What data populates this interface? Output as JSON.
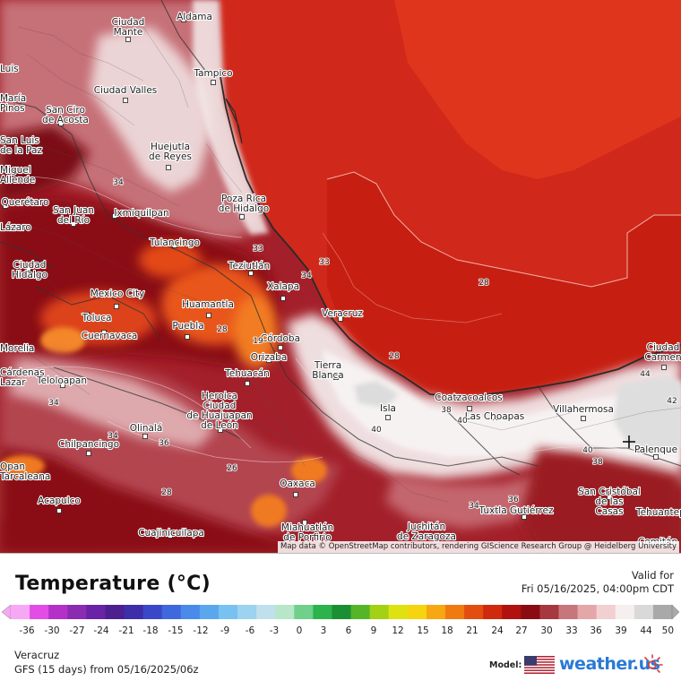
{
  "map": {
    "attribution": "Map data © OpenStreetMap contributors, rendering GIScience Research Group @ Heidelberg University",
    "cities": [
      {
        "name": "Ciudad",
        "name2": "Mante"
      },
      {
        "name": "Aldama"
      },
      {
        "name": "Tampico"
      },
      {
        "name": "Ciudad Valles"
      },
      {
        "name": "San Ciro",
        "name2": "de Acosta"
      },
      {
        "name": "Huejutla",
        "name2": "de Reyes"
      },
      {
        "name": "Poza Rica",
        "name2": "de Hidalgo"
      },
      {
        "name": "Querétaro"
      },
      {
        "name": "San Juan",
        "name2": "del Río"
      },
      {
        "name": "Ixmiquilpan"
      },
      {
        "name": "Tulancingo"
      },
      {
        "name": "Ciudad",
        "name2": "Hidalgo"
      },
      {
        "name": "Teziutlán"
      },
      {
        "name": "Mexico City"
      },
      {
        "name": "Xalapa"
      },
      {
        "name": "Huamantla"
      },
      {
        "name": "Toluca"
      },
      {
        "name": "Puebla"
      },
      {
        "name": "Veracruz"
      },
      {
        "name": "Cuernavaca"
      },
      {
        "name": "Córdoba"
      },
      {
        "name": "Orizaba"
      },
      {
        "name": "Tierra",
        "name2": "Blanca"
      },
      {
        "name": "Teloloapan"
      },
      {
        "name": "Tehuacán"
      },
      {
        "name": "Heroica",
        "name2": "Ciudad",
        "name3": "de Huajuapan",
        "name4": "de León"
      },
      {
        "name": "Coatzacoalcos"
      },
      {
        "name": "Ciudad",
        "name2": "Carmen"
      },
      {
        "name": "Villahermosa"
      },
      {
        "name": "Las Choapas"
      },
      {
        "name": "Isla"
      },
      {
        "name": "Olinalá"
      },
      {
        "name": "Chilpancingo"
      },
      {
        "name": "Palenque"
      },
      {
        "name": "Oaxaca"
      },
      {
        "name": "Acapulco"
      },
      {
        "name": "San Cristóbal",
        "name2": "de las",
        "name3": "Casas"
      },
      {
        "name": "Tuxtla Gutiérrez"
      },
      {
        "name": "Cuajinicuilapa"
      },
      {
        "name": "Miahuatlán",
        "name2": "de Porfirio"
      },
      {
        "name": "Juchitán",
        "name2": "de Zaragoza"
      }
    ],
    "edge_labels": [
      "Luis",
      "María",
      "Pinos",
      "San Luis",
      "de la Paz",
      "Miguel",
      "Allende",
      "Lázaro",
      "Morelia",
      "Cárdenas",
      "Lazar",
      "Opan",
      "Tarcaleana",
      "Tehuantepec",
      "Comitán"
    ],
    "isotherm_labels": [
      "34",
      "33",
      "28",
      "34",
      "33",
      "19",
      "28",
      "28",
      "40",
      "38",
      "40",
      "38",
      "42",
      "34",
      "36",
      "26",
      "28",
      "36",
      "34",
      "34",
      "40",
      "44"
    ],
    "colors": {
      "gulf": "#cc1c10",
      "gulf_coast": "#d8281a",
      "lowland": "#b8211b",
      "hot_white": "#f3efee",
      "highland_dark": "#7a1018",
      "highland_pink": "#c8707a",
      "orange": "#f05a18",
      "cool": "#e7c4c6"
    }
  },
  "legend": {
    "title": "Temperature (°C)",
    "valid_label": "Valid for",
    "valid_date": "Fri 05/16/2025, 04:00pm CDT",
    "ticks": [
      "-36",
      "-30",
      "-27",
      "-24",
      "-21",
      "-18",
      "-15",
      "-12",
      "-9",
      "-6",
      "-3",
      "0",
      "3",
      "6",
      "9",
      "12",
      "15",
      "18",
      "21",
      "24",
      "27",
      "30",
      "33",
      "36",
      "39",
      "44",
      "50"
    ],
    "colors": [
      "#f7a8f4",
      "#e24de6",
      "#b431c9",
      "#8b2bb0",
      "#6a22a6",
      "#4d1f8f",
      "#3e2ea8",
      "#3a48c8",
      "#3f68dd",
      "#4a8ae8",
      "#5aa7ee",
      "#78c1f1",
      "#9bd3f0",
      "#bfe0ec",
      "#b8e6c8",
      "#6fd08b",
      "#2cb34b",
      "#1b8f33",
      "#55b528",
      "#a2d115",
      "#dfe211",
      "#f6d40f",
      "#f6a712",
      "#f07a10",
      "#e24e10",
      "#cf2a0e",
      "#b0130f",
      "#8a0c12",
      "#a5393f",
      "#c7767b",
      "#e3a7aa",
      "#f2cfd0",
      "#f6efef",
      "#d9d9d9",
      "#a9a9a9"
    ]
  },
  "footer": {
    "location": "Veracruz",
    "model_run": "GFS (15 days) from  05/16/2025/06z",
    "model_label": "Model:",
    "brand": "weather.us"
  }
}
